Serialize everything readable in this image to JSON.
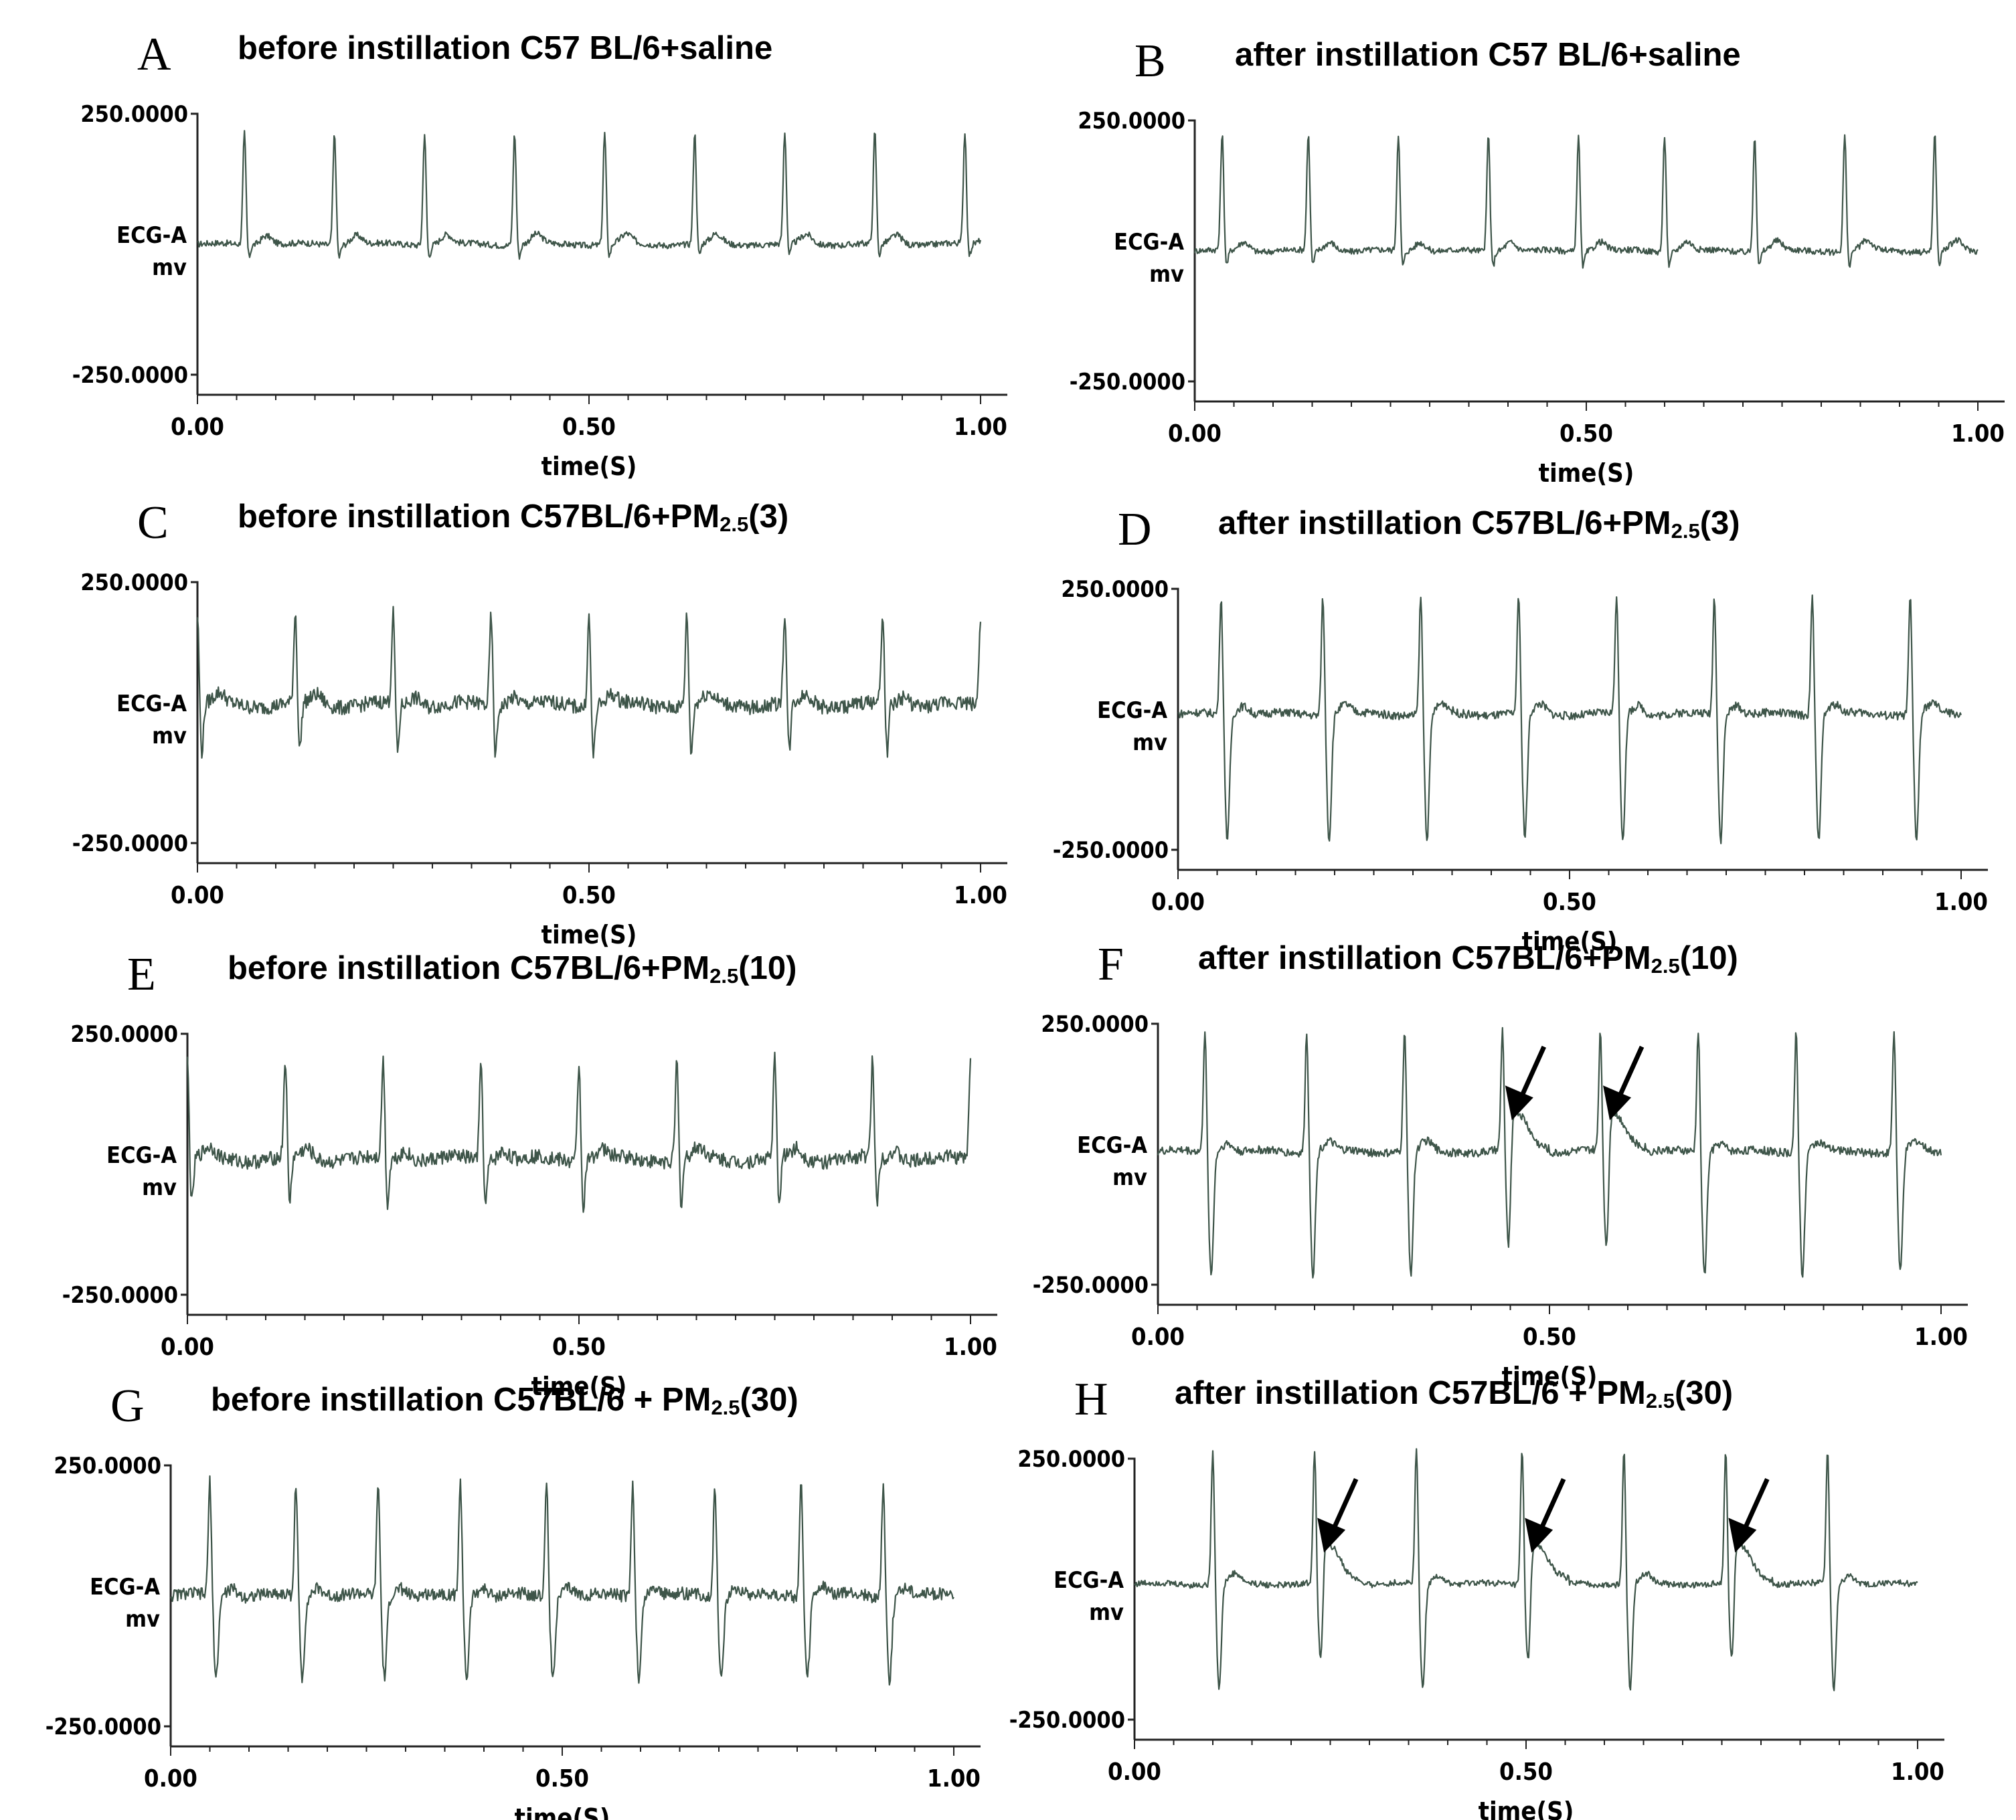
{
  "chart_data": [
    {
      "type": "line",
      "panel": "A",
      "title": "before instillation  C57 BL/6+saline",
      "xlabel": "time(S)",
      "ylabel": [
        "ECG-A",
        "mv"
      ],
      "xlim": [
        0,
        1
      ],
      "ylim": [
        -250,
        250
      ],
      "x_ticks": [
        "0.00",
        "0.50",
        "1.00"
      ],
      "y_ticks": [
        "250.0000",
        "-250.0000"
      ],
      "beats_s": [
        0.06,
        0.175,
        0.29,
        0.405,
        0.52,
        0.635,
        0.75,
        0.865,
        0.98
      ],
      "r_peak_mv": 215,
      "s_trough_mv": -25,
      "baseline_mv": 0,
      "noise_mv": 6,
      "arrows_s": [],
      "colors": {
        "trace": "#3e5549",
        "axis": "#222222"
      }
    },
    {
      "type": "line",
      "panel": "B",
      "title": "after instillation  C57 BL/6+saline",
      "xlabel": "time(S)",
      "ylabel": [
        "ECG-A",
        "mv"
      ],
      "xlim": [
        0,
        1
      ],
      "ylim": [
        -250,
        250
      ],
      "x_ticks": [
        "0.00",
        "0.50",
        "1.00"
      ],
      "y_ticks": [
        "250.0000",
        "-250.0000"
      ],
      "beats_s": [
        0.035,
        0.145,
        0.26,
        0.375,
        0.49,
        0.6,
        0.715,
        0.83,
        0.945
      ],
      "r_peak_mv": 225,
      "s_trough_mv": -30,
      "baseline_mv": 0,
      "noise_mv": 6,
      "arrows_s": [],
      "colors": {
        "trace": "#3e5549",
        "axis": "#222222"
      }
    },
    {
      "type": "line",
      "panel": "C",
      "title_main": "before instillation  C57BL/6+PM",
      "title_sub": "2.5",
      "title_tail": "(3)",
      "xlabel": "time(S)",
      "ylabel": [
        "ECG-A",
        "mv"
      ],
      "xlim": [
        0,
        1
      ],
      "ylim": [
        -250,
        250
      ],
      "x_ticks": [
        "0.00",
        "0.50",
        "1.00"
      ],
      "y_ticks": [
        "250.0000",
        "-250.0000"
      ],
      "beats_s": [
        0.0,
        0.125,
        0.25,
        0.375,
        0.5,
        0.625,
        0.75,
        0.875,
        1.0
      ],
      "r_peak_mv": 175,
      "s_trough_mv": -95,
      "baseline_mv": 15,
      "noise_mv": 14,
      "arrows_s": [],
      "colors": {
        "trace": "#3e5549",
        "axis": "#222222"
      }
    },
    {
      "type": "line",
      "panel": "D",
      "title_main": "after instillation  C57BL/6+PM",
      "title_sub": "2.5",
      "title_tail": "(3)",
      "xlabel": "time(S)",
      "ylabel": [
        "ECG-A",
        "mv"
      ],
      "xlim": [
        0,
        1
      ],
      "ylim": [
        -250,
        250
      ],
      "x_ticks": [
        "0.00",
        "0.50",
        "1.00"
      ],
      "y_ticks": [
        "250.0000",
        "-250.0000"
      ],
      "beats_s": [
        0.055,
        0.185,
        0.31,
        0.435,
        0.56,
        0.685,
        0.81,
        0.935
      ],
      "r_peak_mv": 230,
      "s_trough_mv": -240,
      "baseline_mv": 10,
      "noise_mv": 8,
      "arrows_s": [],
      "colors": {
        "trace": "#3e5549",
        "axis": "#222222"
      }
    },
    {
      "type": "line",
      "panel": "E",
      "title_main": "before instillation  C57BL/6+PM",
      "title_sub": "2.5",
      "title_tail": "(10)",
      "xlabel": "time(S)",
      "ylabel": [
        "ECG-A",
        "mv"
      ],
      "xlim": [
        0,
        1
      ],
      "ylim": [
        -250,
        250
      ],
      "x_ticks": [
        "0.00",
        "0.50",
        "1.00"
      ],
      "y_ticks": [
        "250.0000",
        "-250.0000"
      ],
      "beats_s": [
        0.0,
        0.125,
        0.25,
        0.375,
        0.5,
        0.625,
        0.75,
        0.875,
        1.0
      ],
      "r_peak_mv": 190,
      "s_trough_mv": -90,
      "baseline_mv": 10,
      "noise_mv": 14,
      "arrows_s": [],
      "colors": {
        "trace": "#3e5549",
        "axis": "#222222"
      }
    },
    {
      "type": "line",
      "panel": "F",
      "title_main": "after instillation  C57BL/6+PM",
      "title_sub": "2.5",
      "title_tail": "(10)",
      "xlabel": "time(S)",
      "ylabel": [
        "ECG-A",
        "mv"
      ],
      "xlim": [
        0,
        1
      ],
      "ylim": [
        -250,
        250
      ],
      "x_ticks": [
        "0.00",
        "0.50",
        "1.00"
      ],
      "y_ticks": [
        "250.0000",
        "-250.0000"
      ],
      "beats_s": [
        0.06,
        0.19,
        0.315,
        0.44,
        0.565,
        0.69,
        0.815,
        0.94
      ],
      "r_peak_mv": 235,
      "s_trough_mv": -235,
      "baseline_mv": 5,
      "noise_mv": 8,
      "arrows_s": [
        0.44,
        0.565
      ],
      "colors": {
        "trace": "#3e5549",
        "axis": "#222222"
      }
    },
    {
      "type": "line",
      "panel": "G",
      "title_main": "before instillation  C57BL/6 + PM",
      "title_sub": "2.5",
      "title_tail": "(30)",
      "xlabel": "time(S)",
      "ylabel": [
        "ECG-A",
        "mv"
      ],
      "xlim": [
        0,
        1
      ],
      "ylim": [
        -250,
        250
      ],
      "x_ticks": [
        "0.00",
        "0.50",
        "1.00"
      ],
      "y_ticks": [
        "250.0000",
        "-250.0000"
      ],
      "beats_s": [
        0.05,
        0.16,
        0.265,
        0.37,
        0.48,
        0.59,
        0.695,
        0.805,
        0.91
      ],
      "r_peak_mv": 220,
      "s_trough_mv": -155,
      "baseline_mv": 0,
      "noise_mv": 12,
      "arrows_s": [],
      "colors": {
        "trace": "#3e5549",
        "axis": "#222222"
      }
    },
    {
      "type": "line",
      "panel": "H",
      "title_main": "after instillation  C57BL/6 + PM",
      "title_sub": "2.5",
      "title_tail": "(30)",
      "xlabel": "time(S)",
      "ylabel": [
        "ECG-A",
        "mv"
      ],
      "xlim": [
        0,
        1
      ],
      "ylim": [
        -250,
        250
      ],
      "x_ticks": [
        "0.00",
        "0.50",
        "1.00"
      ],
      "y_ticks": [
        "250.0000",
        "-250.0000"
      ],
      "beats_s": [
        0.1,
        0.23,
        0.36,
        0.495,
        0.625,
        0.755,
        0.885
      ],
      "r_peak_mv": 260,
      "s_trough_mv": -200,
      "baseline_mv": 10,
      "noise_mv": 6,
      "arrows_s": [
        0.23,
        0.495,
        0.755
      ],
      "colors": {
        "trace": "#3e5549",
        "axis": "#222222"
      }
    }
  ]
}
